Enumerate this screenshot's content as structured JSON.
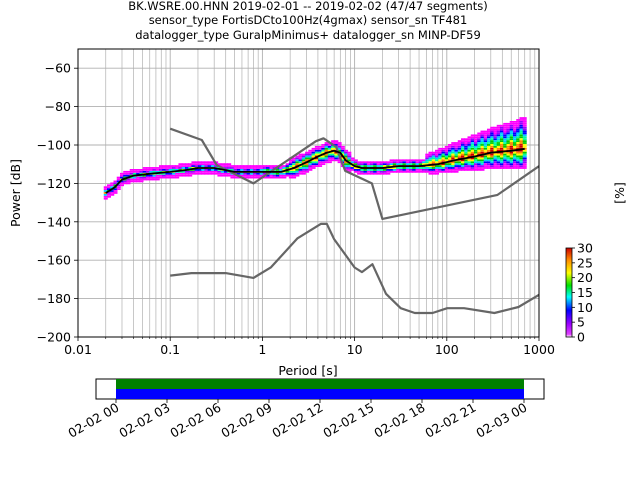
{
  "title_lines": [
    "BK.WSRE.00.HNN   2019-02-01 -- 2019-02-02  (47/47 segments)",
    "sensor_type FortisDCto100Hz(4gmax) sensor_sn TF481",
    "datalogger_type GuralpMinimus+ datalogger_sn MINP-DF59"
  ],
  "chart_data": [
    {
      "type": "heatmap",
      "subtype": "probabilistic power spectral density",
      "xlabel": "Period [s]",
      "ylabel": "Power [dB]",
      "xscale": "log",
      "xlim": [
        0.01,
        1000
      ],
      "ylim": [
        -200,
        -50
      ],
      "grid": true,
      "xticks": [
        {
          "value": 0.01,
          "label": "0.01"
        },
        {
          "value": 0.1,
          "label": "0.1"
        },
        {
          "value": 1,
          "label": "1"
        },
        {
          "value": 10,
          "label": "10"
        },
        {
          "value": 100,
          "label": "100"
        },
        {
          "value": 1000,
          "label": "1000"
        }
      ],
      "yticks": [
        {
          "value": -60,
          "label": "−60"
        },
        {
          "value": -80,
          "label": "−80"
        },
        {
          "value": -100,
          "label": "−100"
        },
        {
          "value": -120,
          "label": "−120"
        },
        {
          "value": -140,
          "label": "−140"
        },
        {
          "value": -160,
          "label": "−160"
        },
        {
          "value": -180,
          "label": "−180"
        },
        {
          "value": -200,
          "label": "−200"
        }
      ],
      "colorbar": {
        "label": "[%]",
        "range": [
          0,
          30
        ],
        "ticks": [
          "0",
          "5",
          "10",
          "15",
          "20",
          "25",
          "30"
        ]
      },
      "mode_curve": {
        "color": "#000000",
        "x": [
          0.02,
          0.025,
          0.03,
          0.04,
          0.06,
          0.1,
          0.15,
          0.2,
          0.3,
          0.5,
          0.8,
          1.2,
          1.6,
          2.2,
          3,
          4,
          5,
          6,
          7,
          8,
          10,
          12,
          15,
          20,
          30,
          50,
          80,
          120,
          200,
          300,
          500,
          700
        ],
        "y": [
          -125,
          -122,
          -118,
          -116,
          -115,
          -114,
          -113,
          -112,
          -112,
          -114,
          -114,
          -114,
          -114,
          -112,
          -109,
          -106,
          -104,
          -103,
          -104,
          -108,
          -111,
          -112,
          -112,
          -112,
          -111,
          -111,
          -110,
          -108,
          -106,
          -104,
          -103,
          -102
        ]
      },
      "nhnm": {
        "color": "#666666",
        "x": [
          0.1,
          0.22,
          0.32,
          0.8,
          3.8,
          4.6,
          6.3,
          7.9,
          15.4,
          20,
          354.8,
          1000
        ],
        "y": [
          -91.5,
          -97.4,
          -110.5,
          -120,
          -98,
          -96.5,
          -101,
          -113.5,
          -120,
          -138.5,
          -126,
          -111
        ]
      },
      "nlnm": {
        "color": "#666666",
        "x": [
          0.1,
          0.17,
          0.4,
          0.8,
          1.24,
          2.4,
          4.3,
          5,
          6,
          10,
          12,
          15.6,
          21.9,
          31.6,
          45,
          70,
          101,
          154,
          328,
          600,
          1000
        ],
        "y": [
          -168,
          -166.7,
          -166.7,
          -169.2,
          -163.7,
          -148.6,
          -141.1,
          -141.1,
          -149,
          -163.8,
          -166.2,
          -162.1,
          -177.5,
          -185,
          -187.5,
          -187.5,
          -185,
          -185,
          -187.5,
          -184.4,
          -178
        ]
      }
    },
    {
      "type": "timeline",
      "name": "data coverage",
      "x_start": "02-02 00",
      "x_end": "02-03 00",
      "tick_labels": [
        "02-02 00",
        "02-02 03",
        "02-02 06",
        "02-02 09",
        "02-02 12",
        "02-02 15",
        "02-02 18",
        "02-02 21",
        "02-03 00"
      ],
      "bars": [
        {
          "color": "#008000",
          "start": "02-02 00",
          "end": "02-03 00"
        },
        {
          "color": "#0000ff",
          "start": "02-02 00",
          "end": "02-03 00"
        }
      ]
    }
  ]
}
